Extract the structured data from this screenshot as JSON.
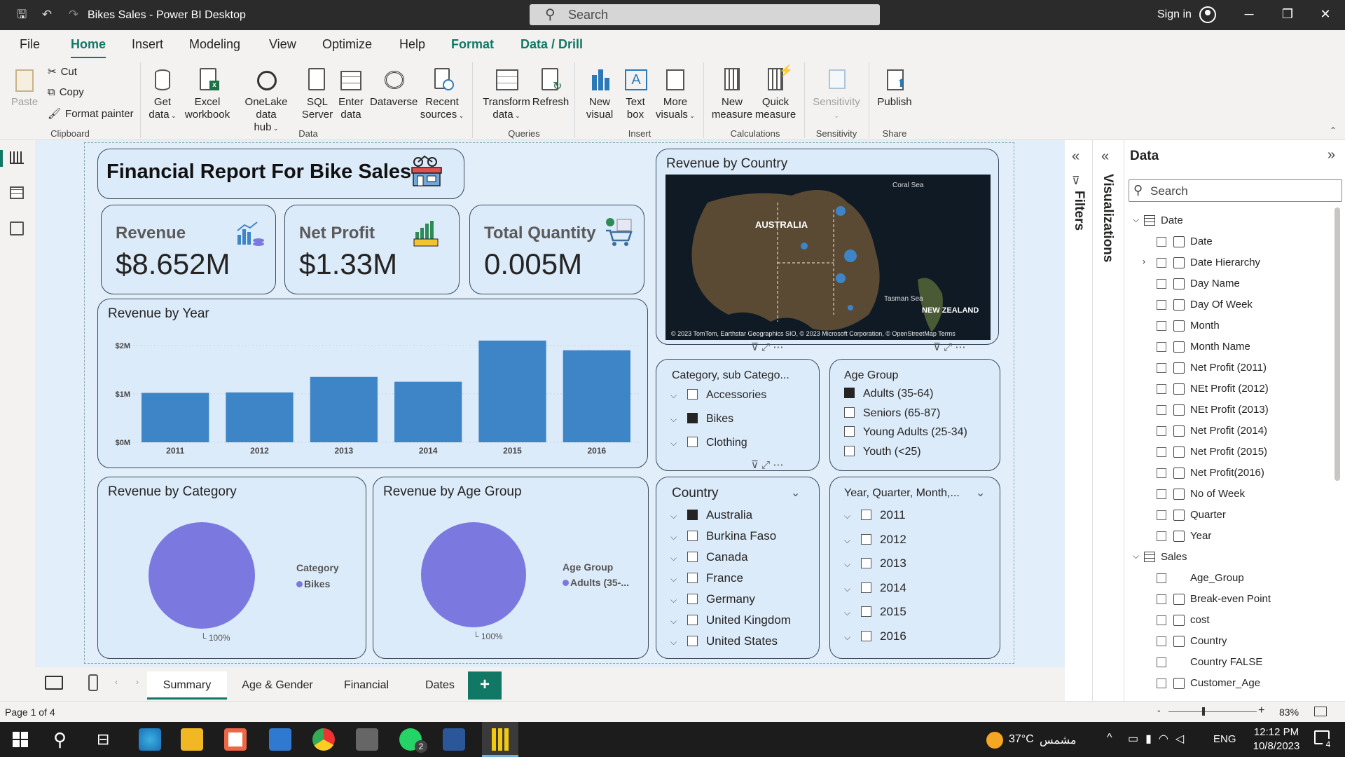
{
  "window": {
    "title": "Bikes Sales - Power BI Desktop",
    "search_placeholder": "Search",
    "sign_in": "Sign in"
  },
  "menu": [
    "File",
    "Home",
    "Insert",
    "Modeling",
    "View",
    "Optimize",
    "Help",
    "Format",
    "Data / Drill"
  ],
  "ribbon": {
    "clipboard": {
      "paste": "Paste",
      "cut": "Cut",
      "copy": "Copy",
      "format_painter": "Format painter",
      "group": "Clipboard"
    },
    "data": {
      "get_data": [
        "Get",
        "data"
      ],
      "excel": [
        "Excel",
        "workbook"
      ],
      "onelake": [
        "OneLake data",
        "hub"
      ],
      "sql": [
        "SQL",
        "Server"
      ],
      "enter": [
        "Enter",
        "data"
      ],
      "dataverse": "Dataverse",
      "recent": [
        "Recent",
        "sources"
      ],
      "group": "Data"
    },
    "queries": {
      "transform": [
        "Transform",
        "data"
      ],
      "refresh": "Refresh",
      "group": "Queries"
    },
    "insert": {
      "new_visual": [
        "New",
        "visual"
      ],
      "text_box": [
        "Text",
        "box"
      ],
      "more_visuals": [
        "More",
        "visuals"
      ],
      "group": "Insert"
    },
    "calculations": {
      "new_measure": [
        "New",
        "measure"
      ],
      "quick_measure": [
        "Quick",
        "measure"
      ],
      "group": "Calculations"
    },
    "sensitivity": {
      "label": "Sensitivity",
      "group": "Sensitivity"
    },
    "share": {
      "publish": "Publish",
      "group": "Share"
    }
  },
  "report": {
    "title": "Financial Report For Bike Sales",
    "kpis": [
      {
        "label": "Revenue",
        "value": "$8.652M"
      },
      {
        "label": "Net Profit",
        "value": "$1.33M"
      },
      {
        "label": "Total Quantity",
        "value": "0.005M"
      }
    ],
    "map": {
      "title": "Revenue by Country",
      "labels": {
        "australia": "AUSTRALIA",
        "coral": "Coral Sea",
        "tasman": "Tasman Sea",
        "nz": "NEW ZEALAND"
      },
      "attribution": "© 2023 TomTom, Earthstar Geographics SIO, © 2023 Microsoft Corporation, © OpenStreetMap  Terms"
    },
    "slicer_category": {
      "title": "Category, sub Catego...",
      "items": [
        {
          "label": "Accessories",
          "checked": false
        },
        {
          "label": "Bikes",
          "checked": true
        },
        {
          "label": "Clothing",
          "checked": false
        }
      ]
    },
    "slicer_age": {
      "title": "Age Group",
      "items": [
        {
          "label": "Adults (35-64)",
          "checked": true
        },
        {
          "label": "Seniors (65-87)",
          "checked": false
        },
        {
          "label": "Young Adults (25-34)",
          "checked": false
        },
        {
          "label": "Youth (<25)",
          "checked": false
        }
      ]
    },
    "slicer_country": {
      "title": "Country",
      "items": [
        {
          "label": "Australia",
          "checked": true
        },
        {
          "label": "Burkina Faso",
          "checked": false
        },
        {
          "label": "Canada",
          "checked": false
        },
        {
          "label": "France",
          "checked": false
        },
        {
          "label": "Germany",
          "checked": false
        },
        {
          "label": "United Kingdom",
          "checked": false
        },
        {
          "label": "United States",
          "checked": false
        }
      ]
    },
    "slicer_year": {
      "title": "Year, Quarter, Month,...",
      "items": [
        {
          "label": "2011",
          "checked": false
        },
        {
          "label": "2012",
          "checked": false
        },
        {
          "label": "2013",
          "checked": false
        },
        {
          "label": "2014",
          "checked": false
        },
        {
          "label": "2015",
          "checked": false
        },
        {
          "label": "2016",
          "checked": false
        }
      ]
    },
    "pie_category": {
      "title": "Revenue by Category",
      "legend_title": "Category",
      "legend_item": "Bikes",
      "pct": "100%",
      "color": "#7b79e0"
    },
    "pie_age": {
      "title": "Revenue by Age Group",
      "legend_title": "Age Group",
      "legend_item": "Adults (35-...",
      "pct": "100%",
      "color": "#7b79e0"
    }
  },
  "chart_data": {
    "type": "bar",
    "title": "Revenue by Year",
    "categories": [
      "2011",
      "2012",
      "2013",
      "2014",
      "2015",
      "2016"
    ],
    "values": [
      1.02,
      1.03,
      1.35,
      1.25,
      2.1,
      1.9
    ],
    "ylim": [
      0,
      2.2
    ],
    "ytick_labels": [
      "$0M",
      "$1M",
      "$2M"
    ],
    "ytick_values": [
      0,
      1,
      2
    ],
    "color": "#3d85c6"
  },
  "data_pane": {
    "title": "Data",
    "search_placeholder": "Search",
    "tables": [
      {
        "name": "Date",
        "fields": [
          "Date",
          "Date Hierarchy",
          "Day Name",
          "Day Of Week",
          "Month",
          "Month Name",
          "Net Profit (2011)",
          "NEt Profit (2012)",
          "NEt Profit (2013)",
          "Net Profit (2014)",
          "Net Profit (2015)",
          "Net Profit(2016)",
          "No of Week",
          "Quarter",
          "Year"
        ]
      },
      {
        "name": "Sales",
        "fields": [
          "Age_Group",
          "Break-even Point",
          "cost",
          "Country",
          "Country FALSE",
          "Customer_Age"
        ]
      }
    ]
  },
  "panes": {
    "filters": "Filters",
    "visualizations": "Visualizations"
  },
  "pages": [
    "Summary",
    "Age & Gender",
    "Financial",
    "Dates"
  ],
  "status": {
    "page": "Page 1 of 4",
    "zoom": "83%"
  },
  "taskbar": {
    "weather": "37°C",
    "weather_text": "مشمس",
    "lang": "ENG",
    "time": "12:12 PM",
    "date": "10/8/2023",
    "notif": "4",
    "whatsapp_badge": "2"
  }
}
